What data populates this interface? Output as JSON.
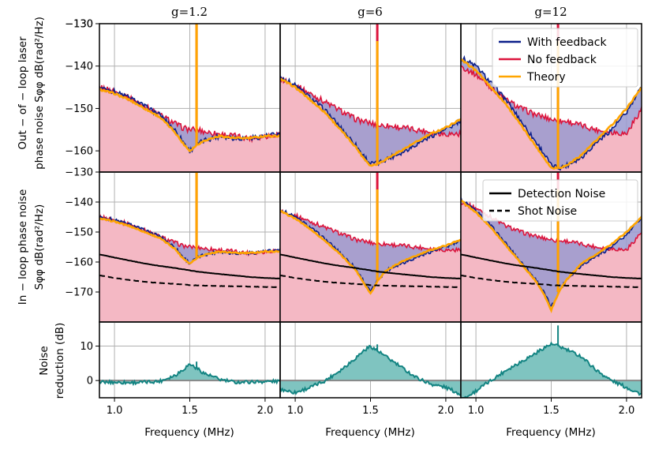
{
  "chart_data": {
    "type": "line",
    "column_titles": [
      "g=1.2",
      "g=6",
      "g=12"
    ],
    "xlabel": "Frequency (MHz)",
    "x_ticks": [
      "1.0",
      "1.5",
      "2.0"
    ],
    "xlim": [
      0.9,
      2.1
    ],
    "rows": [
      {
        "name": "out_of_loop",
        "ylabel_lines": [
          "Out − of − loop laser",
          "phase noise Sφφ dB(rad²/Hz)"
        ],
        "ylim": [
          -165,
          -130
        ],
        "y_ticks": [
          -160,
          -150,
          -140,
          -130
        ],
        "y_tick_labels": [
          "−160",
          "−150",
          "−140",
          "−130"
        ]
      },
      {
        "name": "in_loop",
        "ylabel_lines": [
          "In − loop phase noise",
          "Sφφ dB(rad²/Hz)"
        ],
        "ylim": [
          -180,
          -130
        ],
        "y_ticks": [
          -170,
          -160,
          -150,
          -140
        ],
        "y_tick_labels": [
          "−170",
          "−160",
          "−150",
          "−140"
        ]
      },
      {
        "name": "noise_reduction",
        "ylabel_lines": [
          "Noise",
          "reduction (dB)"
        ],
        "ylim": [
          -5,
          17
        ],
        "y_ticks": [
          0,
          10
        ],
        "y_tick_labels": [
          "0",
          "10"
        ]
      }
    ],
    "legend_top": {
      "placement": "upper-right of g=12 panel, top row",
      "entries": [
        {
          "label": "With feedback",
          "color": "#0b1f8a",
          "style": "solid"
        },
        {
          "label": "No feedback",
          "color": "#dc143c",
          "style": "solid"
        },
        {
          "label": "Theory",
          "color": "#ffa500",
          "style": "solid"
        }
      ]
    },
    "legend_middle": {
      "placement": "upper-right of g=12 panel, middle row",
      "entries": [
        {
          "label": "Detection Noise",
          "color": "#000000",
          "style": "solid"
        },
        {
          "label": "Shot Noise",
          "color": "#000000",
          "style": "dashed"
        }
      ]
    },
    "colors": {
      "with_feedback": "#0b1f8a",
      "no_feedback": "#dc143c",
      "theory": "#ffa500",
      "fill_no_feedback": "#f4b8c4",
      "fill_difference": "#9a9ad0",
      "reduction": "#138482",
      "reduction_fill": "#7fc4c0",
      "grid": "#b0b0b0"
    },
    "x": [
      0.9,
      1.0,
      1.1,
      1.2,
      1.3,
      1.4,
      1.45,
      1.5,
      1.55,
      1.6,
      1.7,
      1.8,
      1.9,
      2.0,
      2.1
    ],
    "series": {
      "no_feedback": {
        "g1.2": [
          -145,
          -146,
          -147.5,
          -149.5,
          -151.5,
          -153.5,
          -154.5,
          -155,
          -155,
          -155.5,
          -156,
          -156.5,
          -157,
          -156.5,
          -156
        ],
        "g6": [
          -143,
          -144.5,
          -146.5,
          -148.5,
          -150.5,
          -152.5,
          -153,
          -153.5,
          -154,
          -154,
          -154.5,
          -155,
          -155.5,
          -156,
          -156
        ],
        "g12": [
          -140,
          -142,
          -145,
          -148,
          -150,
          -151.5,
          -152,
          -152.5,
          -153,
          -153,
          -154,
          -155,
          -155.5,
          -156,
          -150
        ]
      },
      "with_feedback": {
        "g1.2": [
          -145,
          -146,
          -147.5,
          -149.5,
          -151.5,
          -155,
          -157.5,
          -160,
          -158.5,
          -157.5,
          -156.5,
          -157,
          -157,
          -156.5,
          -156
        ],
        "g6": [
          -142.5,
          -144.5,
          -147.5,
          -150.5,
          -154.5,
          -158.5,
          -161,
          -163,
          -163,
          -162,
          -160.5,
          -158.5,
          -156.5,
          -155,
          -153
        ],
        "g12": [
          -138,
          -140,
          -144,
          -148,
          -153,
          -158,
          -160.5,
          -163.5,
          -164,
          -163.5,
          -161.5,
          -158,
          -155,
          -151,
          -145
        ]
      },
      "theory": {
        "g1.2": [
          -145.5,
          -146.5,
          -148,
          -150,
          -152,
          -155.5,
          -158,
          -160,
          -158.5,
          -157.5,
          -156.5,
          -157,
          -157,
          -156.5,
          -156.5
        ],
        "g6": [
          -143,
          -145,
          -148,
          -151,
          -155,
          -159,
          -161.5,
          -163.5,
          -163,
          -162,
          -160,
          -158,
          -156,
          -154.5,
          -152.5
        ],
        "g12": [
          -138.5,
          -141,
          -145,
          -149,
          -154,
          -159,
          -161.5,
          -164,
          -164,
          -163.5,
          -161,
          -157.5,
          -154,
          -150,
          -145
        ]
      },
      "theory_spike_x": [
        1.545,
        1.545,
        1.545
      ],
      "no_feedback_in_loop": {
        "g1.2": [
          -145,
          -146,
          -147.5,
          -149.5,
          -151.5,
          -153.5,
          -154.5,
          -155,
          -155,
          -155.5,
          -156,
          -156.5,
          -157,
          -156.5,
          -156
        ],
        "g6": [
          -143,
          -144.5,
          -146.5,
          -148.5,
          -150.5,
          -152.5,
          -153,
          -153.5,
          -154,
          -154,
          -154.5,
          -155,
          -155.5,
          -156,
          -156
        ],
        "g12": [
          -140,
          -142,
          -145,
          -148,
          -150,
          -151.5,
          -152,
          -152.5,
          -153,
          -153,
          -154,
          -155,
          -155.5,
          -156,
          -150
        ]
      },
      "with_feedback_in_loop": {
        "g1.2": [
          -145,
          -146,
          -147.5,
          -149.5,
          -151.5,
          -155,
          -158,
          -160.5,
          -158.5,
          -157.5,
          -156.5,
          -157,
          -157,
          -156.5,
          -156
        ],
        "g6": [
          -142.5,
          -145,
          -148.5,
          -152.5,
          -157,
          -162,
          -166,
          -170,
          -166,
          -163,
          -160.5,
          -158.5,
          -156.5,
          -155,
          -153
        ],
        "g12": [
          -139,
          -143,
          -148,
          -154,
          -160,
          -166,
          -170,
          -175,
          -170,
          -166,
          -161,
          -158,
          -155,
          -151,
          -145
        ]
      },
      "theory_in_loop": {
        "g1.2": [
          -145.5,
          -146.5,
          -148,
          -150,
          -152,
          -155.5,
          -158.5,
          -160.5,
          -158.5,
          -157.5,
          -156.5,
          -157,
          -157,
          -156.5,
          -156.5
        ],
        "g6": [
          -143,
          -145.5,
          -149,
          -153,
          -157.5,
          -162.5,
          -166.5,
          -170.5,
          -166,
          -163,
          -160,
          -158,
          -156,
          -154.5,
          -152.5
        ],
        "g12": [
          -139.5,
          -143.5,
          -148.5,
          -154.5,
          -160.5,
          -166.5,
          -170.5,
          -176,
          -170,
          -166,
          -160.5,
          -157.5,
          -154,
          -150,
          -145
        ]
      },
      "detection_noise": [
        -157.5,
        -158.5,
        -159.5,
        -160.5,
        -161.3,
        -162,
        -162.4,
        -162.8,
        -163.2,
        -163.5,
        -164,
        -164.5,
        -165,
        -165.3,
        -165.5
      ],
      "shot_noise": [
        -164.5,
        -165.3,
        -166,
        -166.6,
        -167,
        -167.3,
        -167.5,
        -167.7,
        -167.8,
        -167.9,
        -168,
        -168.1,
        -168.2,
        -168.3,
        -168.4
      ],
      "noise_reduction": {
        "g1.2": [
          -0.5,
          -0.5,
          -0.6,
          -0.5,
          -0.2,
          1.5,
          3,
          4.8,
          3.5,
          2,
          0.3,
          -0.5,
          -0.4,
          -0.3,
          -0.2
        ],
        "g6": [
          -2.5,
          -3.5,
          -2,
          0,
          3,
          6.5,
          8.5,
          10,
          8.5,
          7,
          4,
          1,
          -1,
          -2,
          -4
        ],
        "g12": [
          -6,
          -3,
          0,
          3,
          5.5,
          8,
          9.5,
          10.5,
          10,
          9,
          7,
          3,
          0,
          -2,
          -4
        ]
      }
    }
  }
}
